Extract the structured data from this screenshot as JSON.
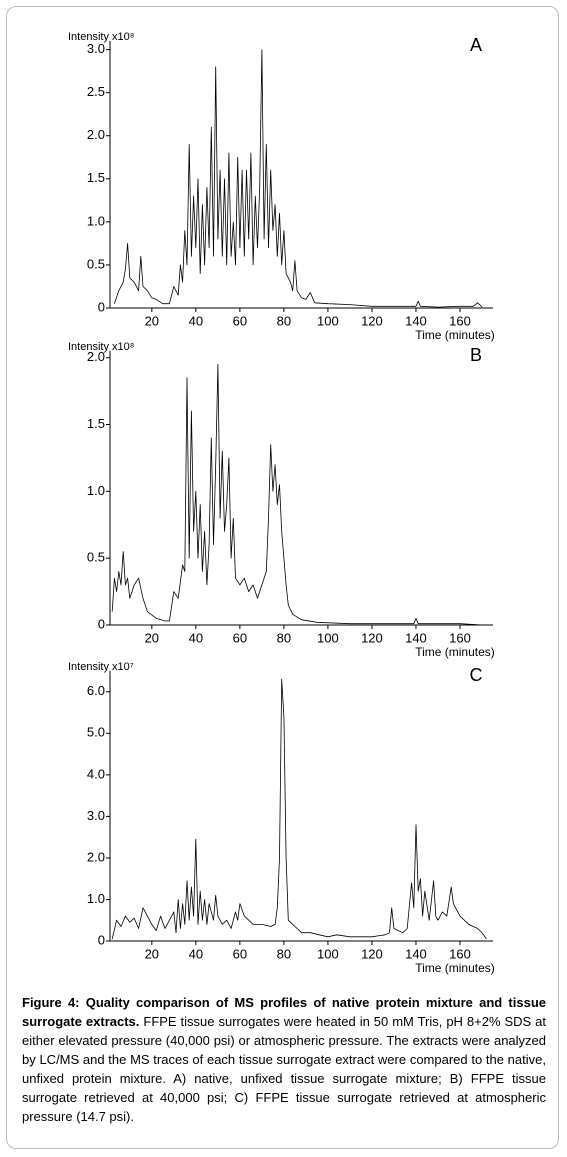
{
  "chart_data": [
    {
      "type": "line",
      "panel": "A",
      "ylabel": "Intensity x10⁸",
      "xlabel": "Time (minutes)",
      "color": "#000000",
      "xlim": [
        1,
        175
      ],
      "xticks": [
        20,
        40,
        60,
        80,
        100,
        120,
        140,
        160
      ],
      "ylim": [
        0,
        3.1
      ],
      "yticks": [
        0,
        0.5,
        {
          "value": 1,
          "label": "1.0"
        },
        1.5,
        {
          "value": 2,
          "label": "2.0"
        },
        2.5,
        {
          "value": 3,
          "label": "3.0"
        }
      ],
      "x": [
        3,
        5,
        7,
        8,
        9,
        10,
        12,
        14,
        15,
        16,
        18,
        20,
        22,
        25,
        28,
        30,
        32,
        33,
        34,
        35,
        36,
        37,
        38,
        39,
        40,
        41,
        42,
        43,
        44,
        45,
        46,
        47,
        48,
        49,
        50,
        51,
        52,
        53,
        54,
        55,
        56,
        57,
        58,
        59,
        60,
        61,
        62,
        63,
        64,
        65,
        66,
        67,
        68,
        69,
        70,
        71,
        72,
        73,
        74,
        75,
        76,
        77,
        78,
        79,
        80,
        81,
        82,
        83,
        84,
        85,
        86,
        88,
        90,
        92,
        94,
        100,
        110,
        120,
        130,
        140,
        141,
        142,
        150,
        160,
        166,
        168,
        170
      ],
      "values": [
        0.05,
        0.2,
        0.3,
        0.45,
        0.75,
        0.35,
        0.3,
        0.2,
        0.6,
        0.25,
        0.2,
        0.12,
        0.1,
        0.05,
        0.05,
        0.25,
        0.15,
        0.5,
        0.3,
        0.9,
        0.5,
        1.9,
        0.6,
        1.3,
        0.7,
        1.5,
        0.4,
        1.2,
        0.5,
        1.4,
        0.7,
        2.1,
        0.6,
        2.8,
        0.8,
        1.6,
        0.6,
        1.5,
        0.5,
        1.8,
        0.6,
        1.0,
        0.5,
        1.75,
        0.7,
        1.6,
        0.6,
        1.6,
        0.8,
        1.8,
        0.5,
        1.3,
        0.7,
        1.4,
        3.0,
        0.8,
        1.9,
        0.7,
        1.6,
        0.9,
        1.2,
        0.6,
        1.1,
        0.5,
        0.9,
        0.4,
        0.35,
        0.3,
        0.2,
        0.55,
        0.2,
        0.12,
        0.1,
        0.18,
        0.06,
        0.05,
        0.04,
        0.02,
        0.02,
        0.02,
        0.08,
        0.02,
        0.01,
        0.02,
        0.02,
        0.06,
        0.01
      ]
    },
    {
      "type": "line",
      "panel": "B",
      "ylabel": "Intensity x10⁸",
      "xlabel": "Time (minutes)",
      "color": "#000000",
      "xlim": [
        1,
        175
      ],
      "xticks": [
        20,
        40,
        60,
        80,
        100,
        120,
        140,
        160
      ],
      "ylim": [
        0,
        2.05
      ],
      "yticks": [
        0,
        0.5,
        {
          "value": 1,
          "label": "1.0"
        },
        1.5,
        {
          "value": 2,
          "label": "2.0"
        }
      ],
      "x": [
        2,
        3,
        4,
        5,
        6,
        7,
        8,
        9,
        10,
        12,
        14,
        16,
        18,
        22,
        26,
        28,
        30,
        32,
        34,
        35,
        36,
        37,
        38,
        39,
        40,
        41,
        42,
        43,
        44,
        45,
        46,
        47,
        48,
        49,
        50,
        51,
        52,
        53,
        54,
        55,
        56,
        57,
        58,
        60,
        62,
        64,
        66,
        68,
        70,
        72,
        73,
        74,
        75,
        76,
        77,
        78,
        79,
        80,
        81,
        82,
        84,
        88,
        95,
        110,
        130,
        139,
        140,
        141,
        160,
        170
      ],
      "values": [
        0.1,
        0.35,
        0.25,
        0.4,
        0.3,
        0.55,
        0.3,
        0.35,
        0.2,
        0.3,
        0.35,
        0.2,
        0.1,
        0.05,
        0.03,
        0.03,
        0.25,
        0.2,
        0.45,
        0.4,
        1.85,
        0.5,
        1.6,
        0.7,
        1.0,
        0.5,
        0.9,
        0.4,
        0.7,
        0.3,
        0.6,
        1.4,
        0.6,
        1.2,
        1.95,
        0.8,
        1.3,
        0.7,
        0.9,
        1.25,
        0.5,
        0.8,
        0.35,
        0.3,
        0.35,
        0.25,
        0.3,
        0.2,
        0.3,
        0.4,
        0.8,
        1.35,
        1.0,
        1.2,
        0.9,
        1.05,
        0.7,
        0.5,
        0.3,
        0.15,
        0.08,
        0.04,
        0.02,
        0.01,
        0.01,
        0.01,
        0.05,
        0.01,
        0.01,
        0
      ]
    },
    {
      "type": "line",
      "panel": "C",
      "ylabel": "Intensity x10⁷",
      "xlabel": "Time (minutes)",
      "color": "#000000",
      "xlim": [
        1,
        175
      ],
      "xticks": [
        20,
        40,
        60,
        80,
        100,
        120,
        140,
        160
      ],
      "ylim": [
        0,
        6.5
      ],
      "yticks": [
        0,
        {
          "value": 1,
          "label": "1.0"
        },
        {
          "value": 2,
          "label": "2.0"
        },
        {
          "value": 3,
          "label": "3.0"
        },
        {
          "value": 4,
          "label": "4.0"
        },
        {
          "value": 5,
          "label": "5.0"
        },
        {
          "value": 6,
          "label": "6.0"
        }
      ],
      "x": [
        2,
        4,
        6,
        8,
        10,
        12,
        14,
        16,
        18,
        20,
        22,
        24,
        26,
        28,
        30,
        31,
        32,
        33,
        34,
        35,
        36,
        37,
        38,
        39,
        40,
        41,
        42,
        43,
        44,
        45,
        46,
        48,
        49,
        50,
        52,
        54,
        56,
        58,
        59,
        60,
        62,
        64,
        66,
        70,
        74,
        76,
        77,
        78,
        79,
        80,
        81,
        82,
        84,
        86,
        88,
        92,
        96,
        100,
        104,
        110,
        120,
        126,
        128,
        129,
        130,
        134,
        136,
        138,
        139,
        140,
        141,
        142,
        143,
        144,
        146,
        148,
        149,
        150,
        152,
        154,
        156,
        157,
        158,
        160,
        164,
        168,
        170,
        172
      ],
      "values": [
        0.05,
        0.5,
        0.35,
        0.6,
        0.45,
        0.55,
        0.3,
        0.8,
        0.6,
        0.4,
        0.25,
        0.6,
        0.3,
        0.5,
        0.7,
        0.2,
        1.0,
        0.3,
        0.9,
        0.4,
        1.45,
        0.5,
        1.3,
        0.6,
        2.45,
        0.4,
        1.2,
        0.5,
        1.0,
        0.4,
        0.9,
        0.5,
        1.1,
        0.6,
        0.4,
        0.5,
        0.3,
        0.7,
        0.5,
        0.9,
        0.6,
        0.5,
        0.4,
        0.4,
        0.35,
        0.4,
        0.8,
        2.0,
        6.3,
        5.4,
        2.0,
        0.5,
        0.4,
        0.3,
        0.2,
        0.2,
        0.15,
        0.1,
        0.15,
        0.1,
        0.1,
        0.15,
        0.2,
        0.8,
        0.3,
        0.2,
        0.3,
        1.4,
        0.8,
        2.8,
        1.2,
        1.5,
        0.6,
        1.2,
        0.5,
        1.45,
        0.6,
        0.5,
        0.7,
        0.6,
        1.3,
        0.9,
        0.8,
        0.6,
        0.4,
        0.3,
        0.2,
        0.05
      ]
    }
  ],
  "caption": {
    "title": "Figure 4: Quality comparison of MS profiles of native protein mixture and tissue surrogate extracts.",
    "text": "FFPE tissue surrogates were heated in 50 mM Tris, pH 8+2% SDS at either elevated pressure (40,000 psi) or atmospheric pressure. The extracts were analyzed by LC/MS and the MS traces of each tissue surrogate extract were compared to the native, unfixed protein mixture. A) native, unfixed tissue surrogate mixture; B) FFPE tissue surrogate retrieved at 40,000 psi; C) FFPE tissue surrogate retrieved at atmospheric pressure (14.7 psi)."
  }
}
